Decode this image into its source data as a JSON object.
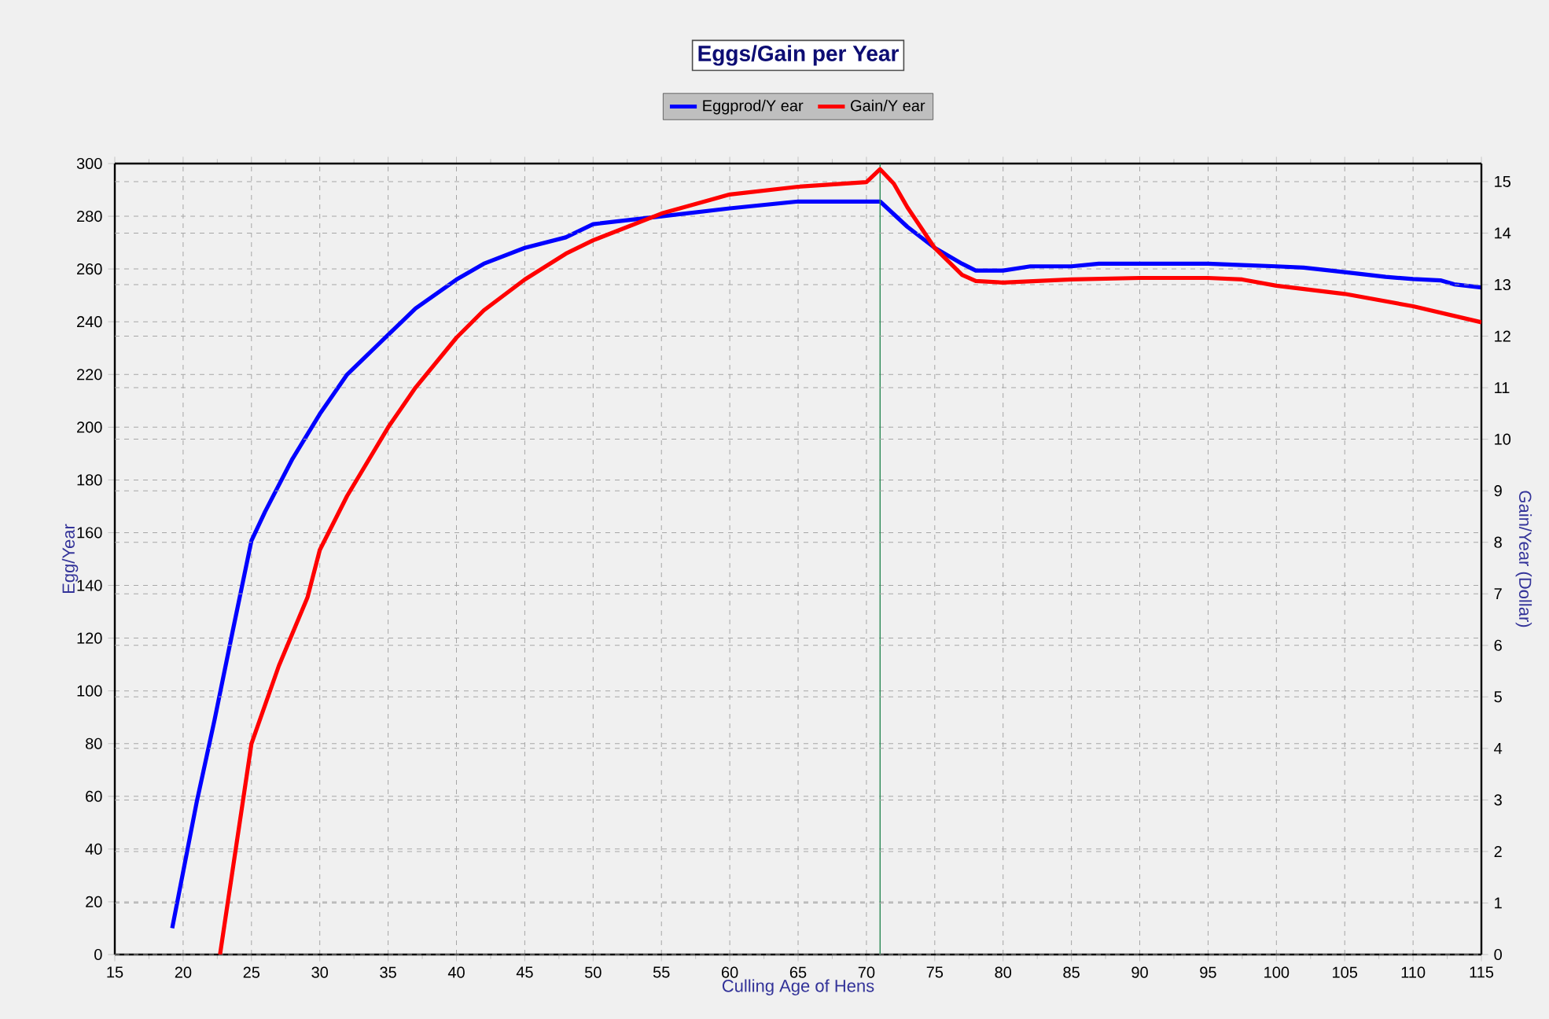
{
  "chart_data": {
    "type": "line",
    "title": "Eggs/Gain per Year",
    "xlabel": "Culling Age of Hens",
    "ylabel": "Egg/Year",
    "y2label": "Gain/Year (Dollar)",
    "xlim": [
      15,
      115
    ],
    "xticks": [
      15,
      20,
      25,
      30,
      35,
      40,
      45,
      50,
      55,
      60,
      65,
      70,
      75,
      80,
      85,
      90,
      95,
      100,
      105,
      110,
      115
    ],
    "ylim": [
      0,
      300
    ],
    "yticks": [
      0,
      20,
      40,
      60,
      80,
      100,
      120,
      140,
      160,
      180,
      200,
      220,
      240,
      260,
      280,
      300
    ],
    "y2lim": [
      0,
      15.35
    ],
    "y2ticks": [
      0,
      1,
      2,
      3,
      4,
      5,
      6,
      7,
      8,
      9,
      10,
      11,
      12,
      13,
      14,
      15
    ],
    "grid": true,
    "legend": "top",
    "marker": "none",
    "line_style": "solid",
    "ref_lines": [
      {
        "axis": "x",
        "value": 71,
        "color": "#2e8b57"
      }
    ],
    "series": [
      {
        "name": "Eggprod/Y ear",
        "color": "#0000ff",
        "x": [
          19.2,
          21,
          22.3,
          23.6,
          25,
          26,
          28,
          30,
          32,
          35,
          37,
          40,
          42,
          45,
          48,
          50,
          55,
          60,
          65,
          70,
          71,
          73,
          75,
          77,
          78,
          80,
          82,
          85,
          87,
          90,
          95,
          97.5,
          100,
          102,
          105,
          108,
          110,
          112,
          113,
          115
        ],
        "values": [
          10,
          58,
          89,
          122,
          157,
          168,
          188,
          205,
          220,
          235,
          245,
          256,
          262,
          268,
          272,
          277,
          280,
          283,
          285.6,
          285.6,
          285.6,
          276,
          268,
          262,
          259.4,
          259.4,
          261,
          261,
          262,
          262,
          262,
          261.5,
          261,
          260.5,
          258.8,
          257,
          256.2,
          255.7,
          254.2,
          253
        ]
      },
      {
        "name": "Gain/Y ear",
        "color": "#ff0000",
        "axis": "y2",
        "x": [
          22.7,
          25,
          27,
          29.1,
          30,
          32,
          35,
          37,
          40,
          42,
          45,
          48,
          50,
          55,
          60,
          65,
          70,
          71,
          72,
          73,
          75,
          77,
          78,
          80,
          85,
          90,
          95,
          97.5,
          100,
          105,
          110,
          115
        ],
        "values": [
          0,
          4.09,
          5.6,
          6.93,
          7.85,
          8.9,
          10.23,
          11.0,
          11.97,
          12.5,
          13.1,
          13.6,
          13.86,
          14.38,
          14.75,
          14.9,
          14.99,
          15.24,
          14.96,
          14.5,
          13.71,
          13.19,
          13.07,
          13.04,
          13.1,
          13.13,
          13.13,
          13.1,
          12.98,
          12.82,
          12.58,
          12.27
        ]
      }
    ]
  }
}
